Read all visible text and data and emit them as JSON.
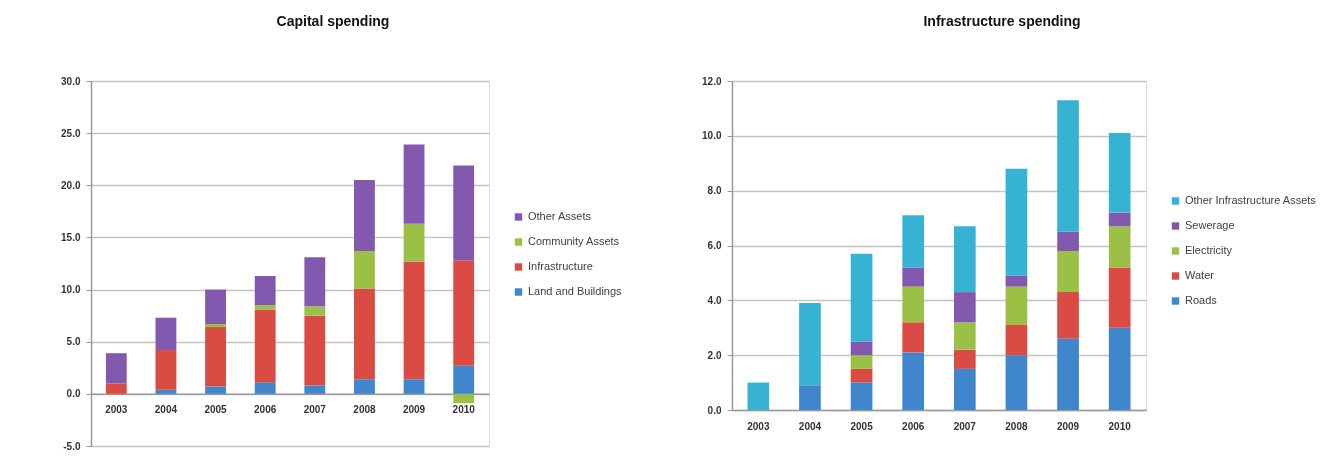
{
  "chart_data": [
    {
      "type": "bar",
      "title": "Capital spending",
      "categories": [
        "2003",
        "2004",
        "2005",
        "2006",
        "2007",
        "2008",
        "2009",
        "2010"
      ],
      "series": [
        {
          "name": "Land and Buildings",
          "color": "#3f86cc",
          "values": [
            null,
            0.4,
            0.7,
            1.1,
            0.8,
            1.4,
            1.4,
            2.7
          ]
        },
        {
          "name": "Infrastructure",
          "color": "#d94b43",
          "values": [
            1.0,
            3.8,
            5.7,
            7.0,
            6.7,
            8.7,
            11.3,
            10.1
          ]
        },
        {
          "name": "Community Assets",
          "color": "#9bc046",
          "values": [
            null,
            null,
            0.3,
            0.4,
            0.9,
            3.6,
            3.6,
            -0.9
          ]
        },
        {
          "name": "Other Assets",
          "color": "#8259ae",
          "values": [
            2.9,
            3.1,
            3.3,
            2.8,
            4.7,
            6.8,
            7.6,
            9.1
          ]
        }
      ],
      "stacked": true,
      "ylim": [
        -5,
        30
      ],
      "yticks": [
        {
          "value": -5,
          "label": "-5.0"
        },
        {
          "value": 0,
          "label": "0.0"
        },
        {
          "value": 5,
          "label": "5.0"
        },
        {
          "value": 10,
          "label": "10.0"
        },
        {
          "value": 15,
          "label": "15.0"
        },
        {
          "value": 20,
          "label": "20.0"
        },
        {
          "value": 25,
          "label": "25.0"
        },
        {
          "value": 30,
          "label": "30.0"
        }
      ],
      "grid": "y",
      "legend": "right"
    },
    {
      "type": "bar",
      "title": "Infrastructure spending",
      "categories": [
        "2003",
        "2004",
        "2005",
        "2006",
        "2007",
        "2008",
        "2009",
        "2010"
      ],
      "series": [
        {
          "name": "Roads",
          "color": "#3f86cc",
          "values": [
            null,
            0.9,
            1.0,
            2.1,
            1.5,
            2.0,
            2.6,
            3.0
          ]
        },
        {
          "name": "Water",
          "color": "#d94b43",
          "values": [
            null,
            null,
            0.5,
            1.1,
            0.7,
            1.1,
            1.7,
            2.2
          ]
        },
        {
          "name": "Electricity",
          "color": "#9bc046",
          "values": [
            null,
            null,
            0.5,
            1.3,
            1.0,
            1.4,
            1.5,
            1.5
          ]
        },
        {
          "name": "Sewerage",
          "color": "#8259ae",
          "values": [
            null,
            null,
            0.5,
            0.7,
            1.1,
            0.4,
            0.7,
            0.5
          ]
        },
        {
          "name": "Other Infrastructure Assets",
          "color": "#36b3d2",
          "values": [
            1.0,
            3.0,
            3.2,
            1.9,
            2.4,
            3.9,
            4.8,
            2.9
          ]
        }
      ],
      "stacked": true,
      "ylim": [
        0,
        12
      ],
      "yticks": [
        {
          "value": 0,
          "label": "0.0"
        },
        {
          "value": 2,
          "label": "2.0"
        },
        {
          "value": 4,
          "label": "4.0"
        },
        {
          "value": 6,
          "label": "6.0"
        },
        {
          "value": 8,
          "label": "8.0"
        },
        {
          "value": 10,
          "label": "10.0"
        },
        {
          "value": 12,
          "label": "12.0"
        }
      ],
      "grid": "y",
      "legend": "right"
    }
  ]
}
